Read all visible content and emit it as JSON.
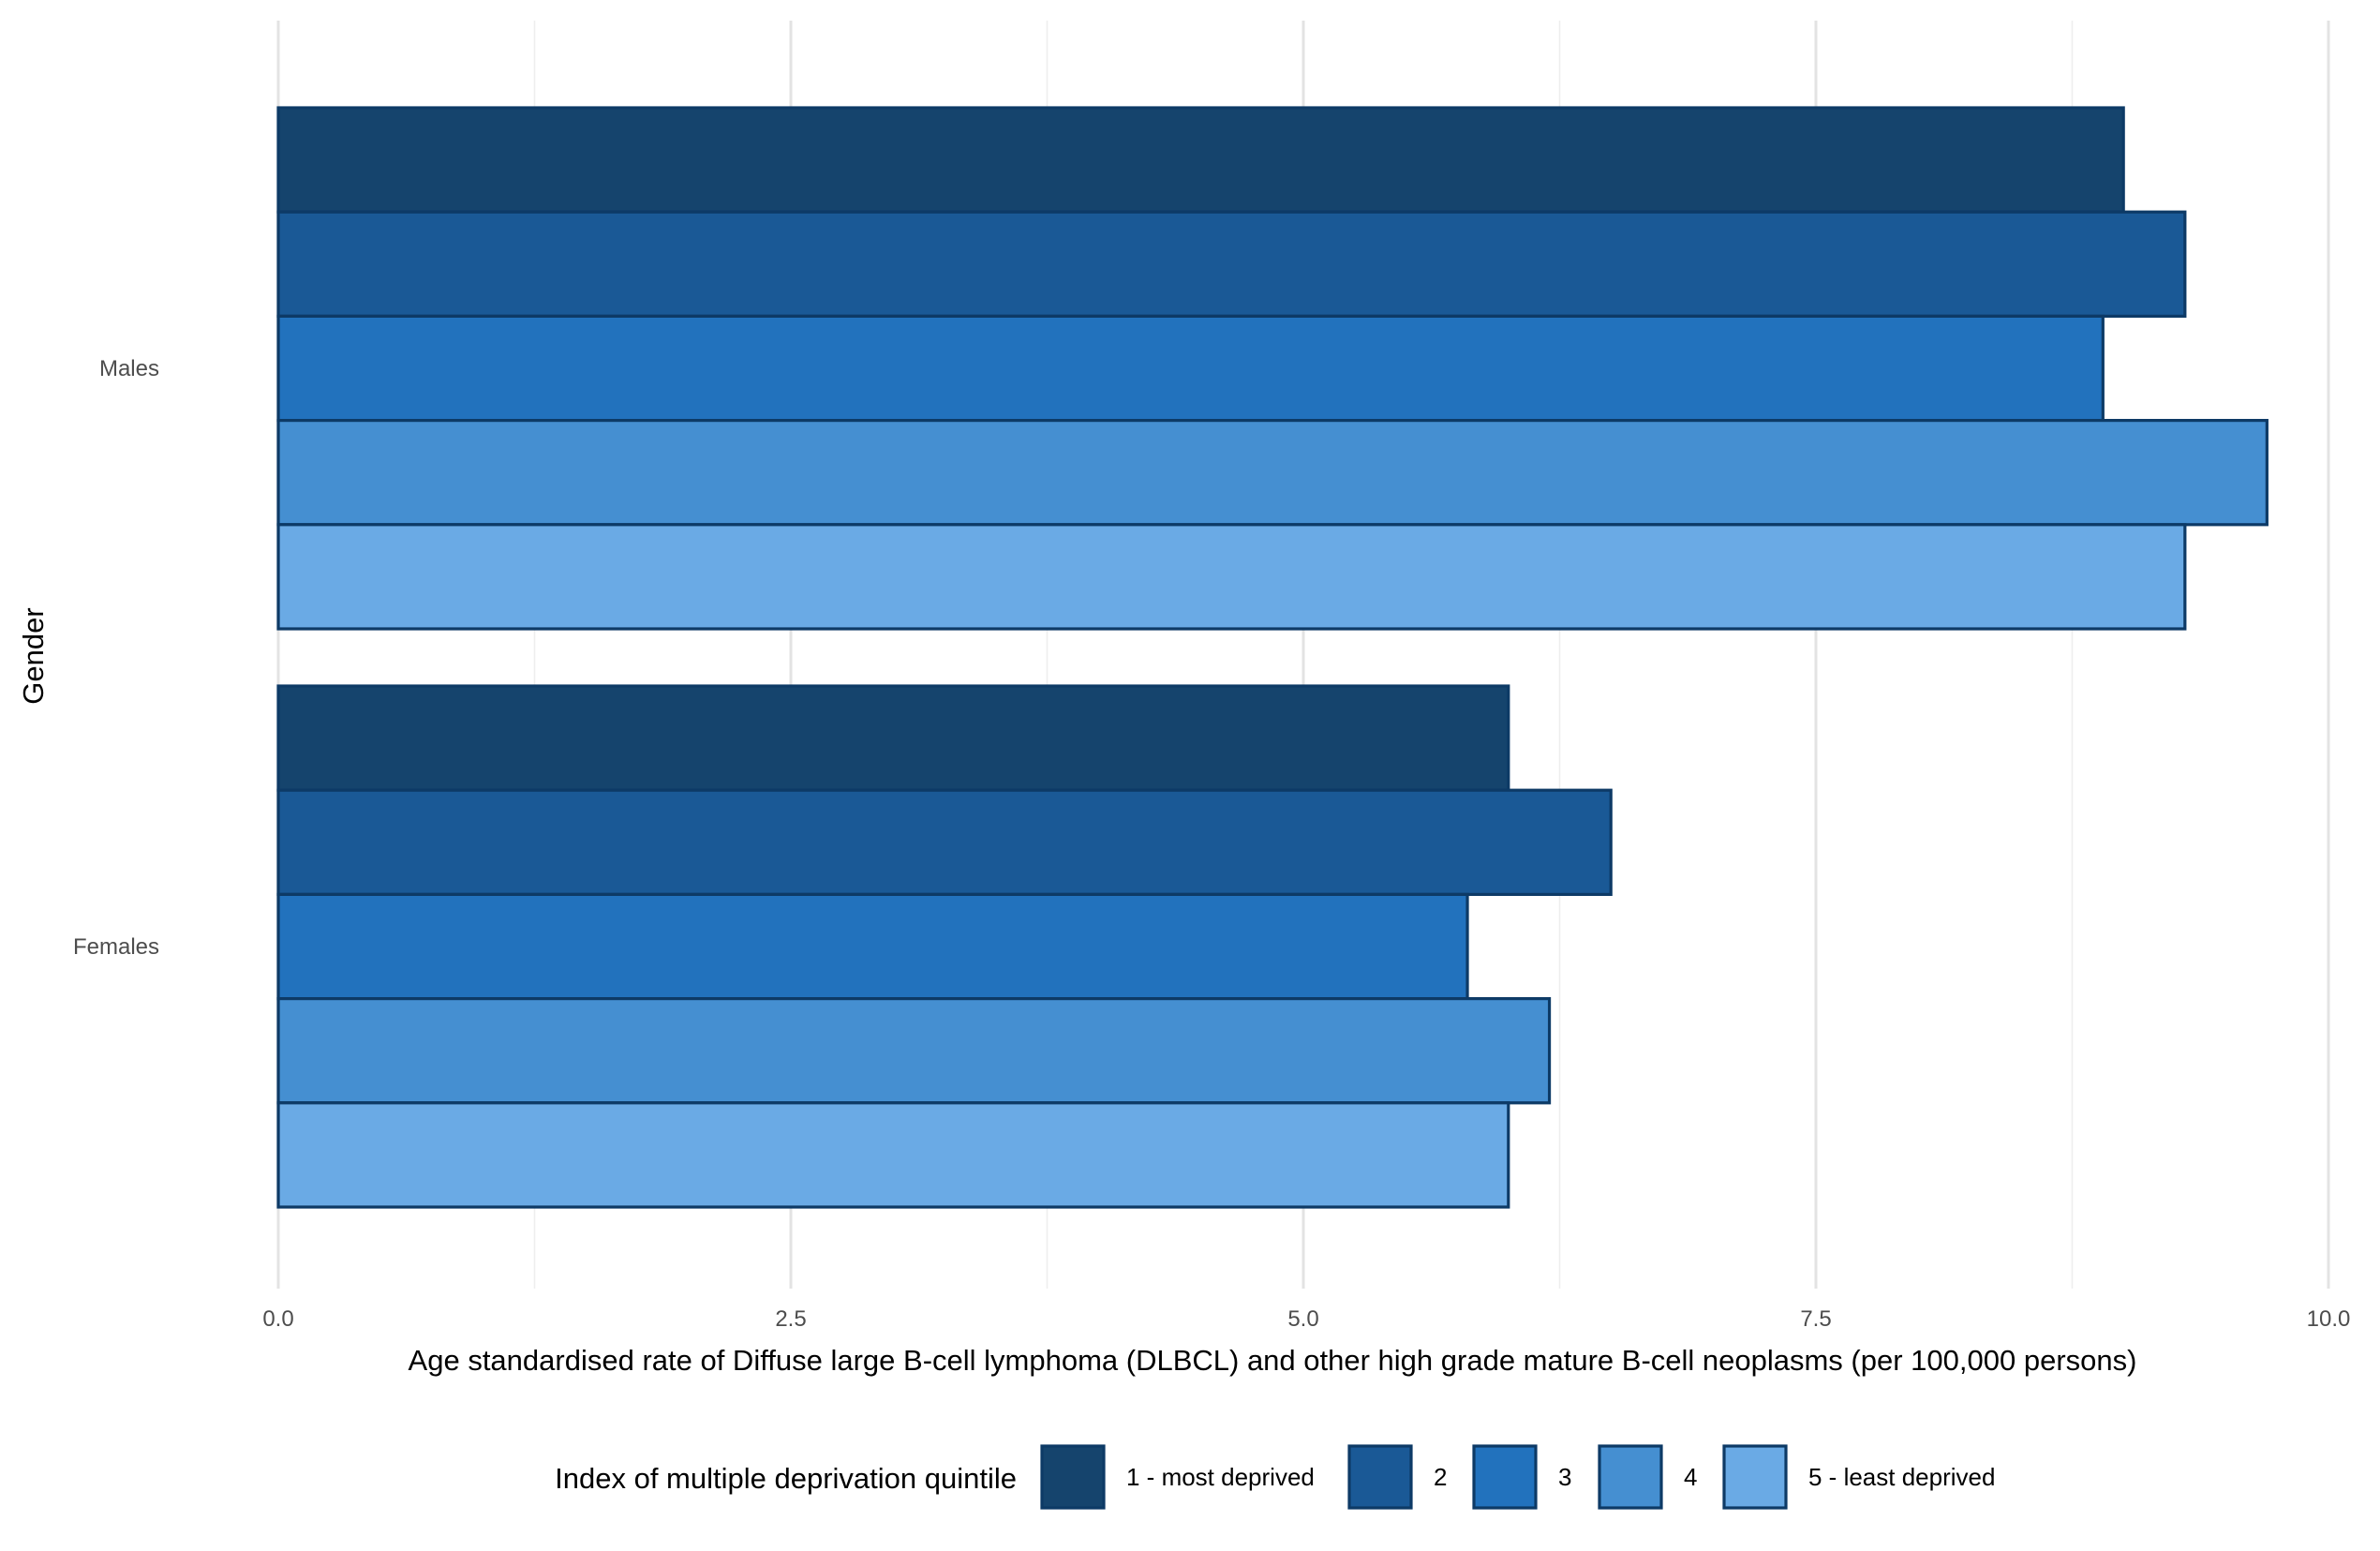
{
  "chart_data": {
    "type": "bar",
    "orientation": "horizontal",
    "categories": [
      "Males",
      "Females"
    ],
    "series": [
      {
        "name": "1 - most deprived",
        "color": "#15446d",
        "values": [
          9.0,
          6.0
        ]
      },
      {
        "name": "2",
        "color": "#1a5996",
        "values": [
          9.3,
          6.5
        ]
      },
      {
        "name": "3",
        "color": "#2272bd",
        "values": [
          8.9,
          5.8
        ]
      },
      {
        "name": "4",
        "color": "#458fd1",
        "values": [
          9.7,
          6.2
        ]
      },
      {
        "name": "5 - least deprived",
        "color": "#6aaae5",
        "values": [
          9.3,
          6.0
        ]
      }
    ],
    "xlabel": "Age standardised rate of Diffuse large B-cell lymphoma (DLBCL) and other high grade mature B-cell neoplasms (per 100,000 persons)",
    "ylabel": "Gender",
    "xlim": [
      0,
      10
    ],
    "x_ticks": [
      0,
      2.5,
      5,
      7.5,
      10
    ],
    "x_tick_labels": [
      "0.0",
      "2.5",
      "5.0",
      "7.5",
      "10.0"
    ],
    "legend_title": "Index of multiple deprivation quintile",
    "legend_position": "bottom",
    "grid": true,
    "bar_outline_color": "#0d3a66"
  }
}
